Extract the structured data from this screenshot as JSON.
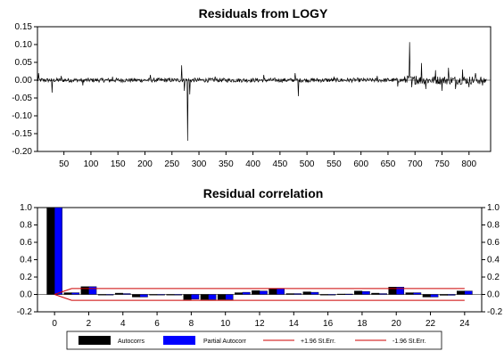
{
  "chart_data": [
    {
      "type": "line",
      "title": "Residuals from LOGY",
      "xlabel": "",
      "ylabel": "",
      "xlim": [
        1,
        840
      ],
      "ylim": [
        -0.2,
        0.15
      ],
      "yticks": [
        "0.15",
        "0.10",
        "0.05",
        "0.00",
        "-0.05",
        "-0.10",
        "-0.15",
        "-0.20"
      ],
      "xticks": [
        "50",
        "100",
        "150",
        "200",
        "250",
        "300",
        "350",
        "400",
        "450",
        "500",
        "550",
        "600",
        "650",
        "700",
        "750",
        "800"
      ],
      "series": [
        {
          "line_color": "#000000",
          "spikes": [
            {
              "x": 3,
              "y": 0.02
            },
            {
              "x": 28,
              "y": -0.035
            },
            {
              "x": 45,
              "y": 0.012
            },
            {
              "x": 85,
              "y": -0.015
            },
            {
              "x": 140,
              "y": 0.01
            },
            {
              "x": 210,
              "y": 0.015
            },
            {
              "x": 268,
              "y": 0.042
            },
            {
              "x": 273,
              "y": -0.03
            },
            {
              "x": 279,
              "y": -0.17
            },
            {
              "x": 283,
              "y": -0.04
            },
            {
              "x": 330,
              "y": 0.01
            },
            {
              "x": 420,
              "y": 0.015
            },
            {
              "x": 478,
              "y": 0.02
            },
            {
              "x": 484,
              "y": -0.045
            },
            {
              "x": 550,
              "y": 0.01
            },
            {
              "x": 630,
              "y": 0.012
            },
            {
              "x": 668,
              "y": -0.018
            },
            {
              "x": 686,
              "y": 0.012
            },
            {
              "x": 690,
              "y": 0.107
            },
            {
              "x": 694,
              "y": -0.02
            },
            {
              "x": 702,
              "y": 0.012
            },
            {
              "x": 712,
              "y": 0.048
            },
            {
              "x": 720,
              "y": -0.025
            },
            {
              "x": 738,
              "y": 0.028
            },
            {
              "x": 750,
              "y": -0.03
            },
            {
              "x": 762,
              "y": 0.035
            },
            {
              "x": 775,
              "y": -0.025
            },
            {
              "x": 788,
              "y": 0.03
            },
            {
              "x": 800,
              "y": -0.02
            },
            {
              "x": 812,
              "y": 0.02
            },
            {
              "x": 825,
              "y": -0.015
            }
          ]
        }
      ]
    },
    {
      "type": "bar",
      "title": "Residual correlation",
      "xlabel": "",
      "ylabel": "",
      "xlim": [
        -1,
        25
      ],
      "ylim": [
        -0.2,
        1.0
      ],
      "yticks": [
        "1.0",
        "0.8",
        "0.6",
        "0.4",
        "0.2",
        "0.0",
        "-0.2"
      ],
      "xticks": [
        "0",
        "2",
        "4",
        "6",
        "8",
        "10",
        "12",
        "14",
        "16",
        "18",
        "20",
        "22",
        "24"
      ],
      "legend": {
        "position": "bottom",
        "items": [
          "Autocorrs",
          "Partial Autocorr",
          "+1.96 St.Err.",
          "-1.96 St.Err."
        ]
      },
      "series": [
        {
          "name": "Autocorrs",
          "color": "#000000",
          "x": [
            0,
            1,
            2,
            3,
            4,
            5,
            6,
            7,
            8,
            9,
            10,
            11,
            12,
            13,
            14,
            15,
            16,
            17,
            18,
            19,
            20,
            21,
            22,
            23,
            24
          ],
          "values": [
            1.0,
            0.02,
            0.09,
            0.0,
            0.015,
            -0.03,
            0.0,
            -0.005,
            -0.06,
            -0.06,
            -0.06,
            0.02,
            0.045,
            0.065,
            0.01,
            0.03,
            0.0,
            0.005,
            0.04,
            0.015,
            0.085,
            0.02,
            -0.03,
            -0.01,
            0.04
          ]
        },
        {
          "name": "Partial Autocorr",
          "color": "#0000ff",
          "x": [
            0,
            1,
            2,
            3,
            4,
            5,
            6,
            7,
            8,
            9,
            10,
            11,
            12,
            13,
            14,
            15,
            16,
            17,
            18,
            19,
            20,
            21,
            22,
            23,
            24
          ],
          "values": [
            1.0,
            0.02,
            0.09,
            -0.005,
            0.01,
            -0.03,
            0.0,
            -0.005,
            -0.055,
            -0.06,
            -0.06,
            0.025,
            0.04,
            0.07,
            0.01,
            0.025,
            0.0,
            0.005,
            0.035,
            0.01,
            0.085,
            0.02,
            -0.03,
            -0.01,
            0.04
          ]
        },
        {
          "name": "+1.96 St.Err.",
          "color": "#cc0000",
          "x": [
            0,
            1,
            24
          ],
          "values": [
            0.0,
            0.068,
            0.068
          ]
        },
        {
          "name": "-1.96 St.Err.",
          "color": "#cc0000",
          "x": [
            0,
            1,
            24
          ],
          "values": [
            0.0,
            -0.068,
            -0.068
          ]
        }
      ]
    }
  ]
}
